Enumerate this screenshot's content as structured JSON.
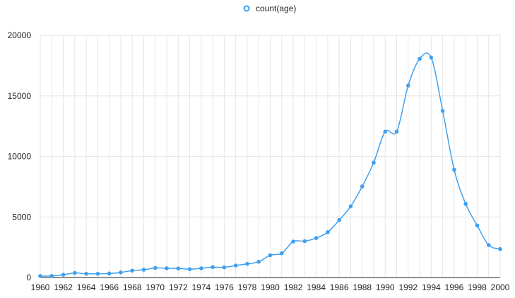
{
  "chart_data": {
    "type": "line",
    "title": "",
    "xlabel": "",
    "ylabel": "",
    "legend": {
      "position": "top-center",
      "entries": [
        "count(age)"
      ]
    },
    "grid": {
      "vertical": true,
      "horizontal": true
    },
    "xlim": [
      1960,
      2000
    ],
    "ylim": [
      0,
      20000
    ],
    "x_ticks": [
      "1960",
      "1962",
      "1964",
      "1966",
      "1968",
      "1970",
      "1972",
      "1974",
      "1976",
      "1978",
      "1980",
      "1982",
      "1984",
      "1986",
      "1988",
      "1990",
      "1992",
      "1994",
      "1996",
      "1998",
      "2000"
    ],
    "y_ticks": [
      "0",
      "5000",
      "10000",
      "15000",
      "20000"
    ],
    "series": [
      {
        "name": "count(age)",
        "color": "#3fa0f0",
        "x": [
          1960,
          1961,
          1962,
          1963,
          1964,
          1965,
          1966,
          1967,
          1968,
          1969,
          1970,
          1971,
          1972,
          1973,
          1974,
          1975,
          1976,
          1977,
          1978,
          1979,
          1980,
          1981,
          1982,
          1983,
          1984,
          1985,
          1986,
          1987,
          1988,
          1989,
          1990,
          1991,
          1992,
          1993,
          1994,
          1995,
          1996,
          1997,
          1998,
          1999,
          2000
        ],
        "values": [
          120,
          130,
          230,
          380,
          310,
          310,
          330,
          420,
          570,
          640,
          790,
          760,
          750,
          690,
          760,
          860,
          840,
          990,
          1130,
          1300,
          1840,
          2000,
          2970,
          3000,
          3260,
          3740,
          4740,
          5880,
          7520,
          9490,
          12050,
          12050,
          15850,
          18060,
          18160,
          13760,
          8900,
          6080,
          4300,
          2680,
          2350
        ]
      }
    ]
  }
}
